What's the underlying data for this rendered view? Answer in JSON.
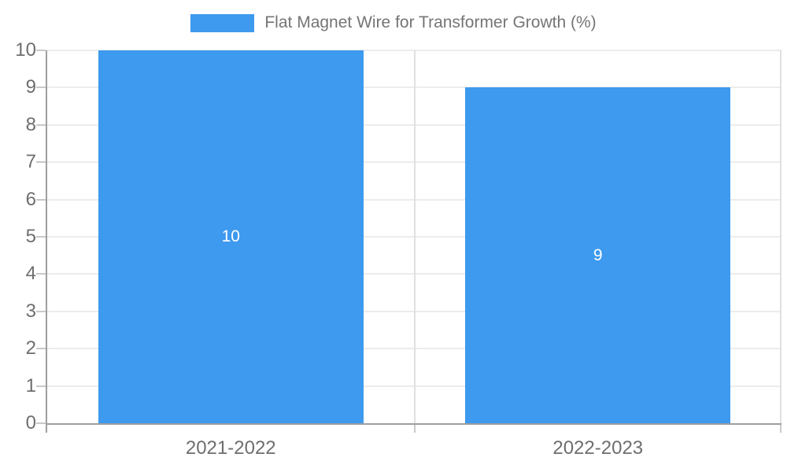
{
  "chart_data": {
    "type": "bar",
    "title": "Flat Magnet Wire for Transformer Growth (%)",
    "categories": [
      "2021-2022",
      "2022-2023"
    ],
    "values": [
      10,
      9
    ],
    "bar_value_labels": [
      "10",
      "9"
    ],
    "xlabel": "",
    "ylabel": "",
    "ylim": [
      0,
      10
    ],
    "yticks": [
      0,
      1,
      2,
      3,
      4,
      5,
      6,
      7,
      8,
      9,
      10
    ],
    "grid": true,
    "legend_position": "top",
    "colors": {
      "bar": "#3E9AEE",
      "bar_label_text": "#FFFFFF",
      "axis_line": "#9E9E9E",
      "gridline": "#ECECEC",
      "tick": "#C9C9C9",
      "axis_label_text": "#6E6E6E",
      "legend_text": "#757575",
      "background": "#FFFFFF"
    }
  }
}
